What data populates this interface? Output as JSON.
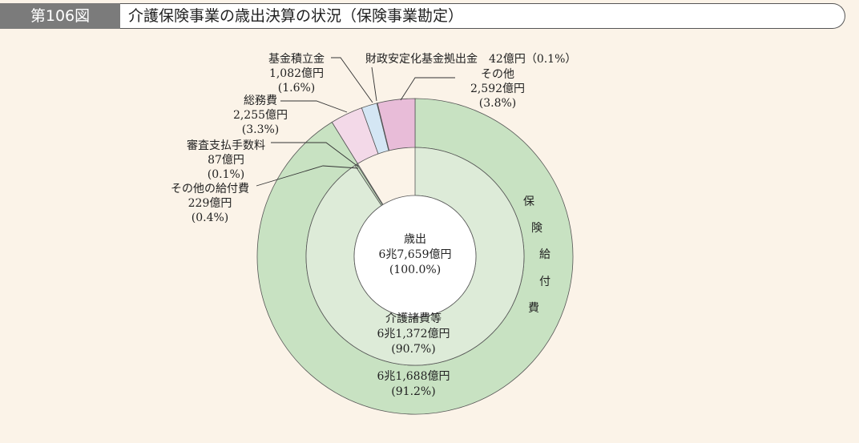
{
  "header": {
    "figure_no": "第106図",
    "title": "介護保険事業の歳出決算の状況（保険事業勘定）"
  },
  "colors": {
    "outer_benefit": "#c8e2c2",
    "inner_care": "#ddebd8",
    "general_affairs": "#f3d9e8",
    "fund_reserve": "#d4e6f4",
    "fiscal_stabilization": "#b7d4b0",
    "other": "#e8bcd8",
    "center": "#ffffff"
  },
  "chart_data": {
    "type": "pie",
    "title": "",
    "unit": "億円",
    "total": {
      "label": "歳出",
      "value_text": "6兆7,659億円",
      "pct_text": "(100.0%)",
      "value": 67659,
      "pct": 100.0
    },
    "outer_ring": [
      {
        "key": "benefit",
        "name": "保険給付費",
        "vertical_label": [
          "保",
          "険",
          "給",
          "付",
          "費"
        ],
        "value": 61688,
        "pct": 91.2,
        "value_text": "6兆1,688億円",
        "pct_text": "(91.2%)"
      },
      {
        "key": "general_affairs",
        "name": "総務費",
        "value": 2255,
        "pct": 3.3,
        "value_text": "2,255億円",
        "pct_text": "(3.3%)"
      },
      {
        "key": "fund_reserve",
        "name": "基金積立金",
        "value": 1082,
        "pct": 1.6,
        "value_text": "1,082億円",
        "pct_text": "(1.6%)"
      },
      {
        "key": "fiscal_stabilization",
        "name": "財政安定化基金拠出金",
        "value": 42,
        "pct": 0.1,
        "value_text": "42億円",
        "pct_text": "(0.1%)"
      },
      {
        "key": "other",
        "name": "その他",
        "value": 2592,
        "pct": 3.8,
        "value_text": "2,592億円",
        "pct_text": "(3.8%)"
      }
    ],
    "inner_ring": [
      {
        "key": "care",
        "name": "介護諸費等",
        "value": 61372,
        "pct": 90.7,
        "value_text": "6兆1,372億円",
        "pct_text": "(90.7%)"
      },
      {
        "key": "review_fee",
        "name": "審査支払手数料",
        "value": 87,
        "pct": 0.1,
        "value_text": "87億円",
        "pct_text": "(0.1%)"
      },
      {
        "key": "other_benefit",
        "name": "その他の給付費",
        "value": 229,
        "pct": 0.4,
        "value_text": "229億円",
        "pct_text": "(0.4%)"
      }
    ],
    "annotations": {
      "fiscal_stabilization_line": "財政安定化基金拠出金　42億円（0.1%）"
    }
  }
}
